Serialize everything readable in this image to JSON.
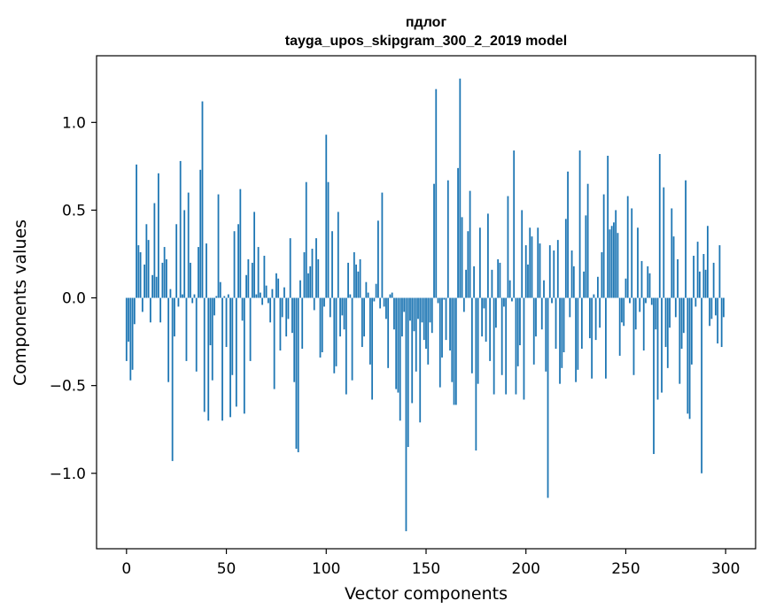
{
  "chart_data": {
    "type": "bar",
    "title": "пдлог",
    "subtitle": "tayga_upos_skipgram_300_2_2019 model",
    "xlabel": "Vector components",
    "ylabel": "Components values",
    "xlim": [
      -15,
      315
    ],
    "ylim": [
      -1.43,
      1.38
    ],
    "xticks": [
      0,
      50,
      100,
      150,
      200,
      250,
      300
    ],
    "yticks": [
      -1.0,
      -0.5,
      0.0,
      0.5,
      1.0
    ],
    "ytick_labels": [
      "−1.0",
      "−0.5",
      "0.0",
      "0.5",
      "1.0"
    ],
    "bar_color": "#1f77b4",
    "grid": false,
    "legend": "none",
    "x_start": 0,
    "values": [
      -0.36,
      -0.25,
      -0.47,
      -0.41,
      -0.15,
      0.76,
      0.3,
      0.26,
      -0.08,
      0.19,
      0.42,
      0.33,
      -0.14,
      0.13,
      0.54,
      0.12,
      0.71,
      -0.14,
      0.2,
      0.29,
      0.22,
      -0.48,
      0.05,
      -0.93,
      -0.22,
      0.42,
      -0.05,
      0.78,
      0.02,
      0.5,
      -0.36,
      0.6,
      0.2,
      -0.03,
      0.02,
      -0.42,
      0.29,
      0.73,
      1.12,
      -0.65,
      0.31,
      -0.7,
      -0.27,
      -0.47,
      -0.1,
      0.01,
      0.59,
      0.09,
      -0.7,
      0.01,
      -0.28,
      0.02,
      -0.68,
      -0.44,
      0.38,
      -0.62,
      0.42,
      0.62,
      -0.13,
      -0.66,
      0.13,
      0.22,
      -0.36,
      0.2,
      0.49,
      0.02,
      0.29,
      0.03,
      -0.04,
      0.24,
      0.07,
      -0.03,
      -0.14,
      0.05,
      -0.52,
      0.14,
      0.11,
      -0.3,
      -0.11,
      0.06,
      -0.22,
      -0.12,
      0.34,
      -0.2,
      -0.48,
      -0.86,
      -0.88,
      0.1,
      -0.29,
      0.26,
      0.66,
      0.14,
      0.18,
      0.28,
      -0.07,
      0.34,
      0.22,
      -0.34,
      -0.31,
      -0.05,
      0.93,
      0.66,
      -0.11,
      0.38,
      -0.43,
      -0.39,
      0.49,
      -0.22,
      -0.1,
      -0.18,
      -0.55,
      0.2,
      0.02,
      -0.47,
      0.26,
      0.19,
      0.15,
      0.22,
      -0.28,
      -0.22,
      0.09,
      0.03,
      -0.38,
      -0.58,
      -0.02,
      0.08,
      0.44,
      -0.06,
      0.6,
      -0.05,
      -0.12,
      -0.4,
      0.02,
      0.03,
      -0.18,
      -0.52,
      -0.54,
      -0.7,
      -0.22,
      -0.08,
      -1.33,
      -0.85,
      -0.13,
      -0.6,
      -0.19,
      -0.42,
      -0.12,
      -0.71,
      -0.14,
      -0.24,
      -0.29,
      -0.38,
      -0.14,
      -0.2,
      0.65,
      1.19,
      -0.03,
      -0.51,
      -0.34,
      -0.01,
      -0.24,
      0.67,
      -0.3,
      -0.48,
      -0.61,
      -0.61,
      0.74,
      1.25,
      0.46,
      -0.08,
      0.16,
      0.38,
      0.61,
      -0.43,
      0.18,
      -0.87,
      -0.49,
      0.4,
      -0.22,
      -0.06,
      -0.25,
      0.48,
      -0.36,
      0.16,
      -0.55,
      -0.17,
      0.22,
      0.2,
      -0.44,
      -0.05,
      -0.55,
      0.58,
      0.1,
      -0.02,
      0.84,
      -0.55,
      -0.39,
      -0.27,
      0.5,
      -0.58,
      0.3,
      0.19,
      0.4,
      0.35,
      -0.38,
      -0.22,
      0.4,
      0.31,
      -0.18,
      0.1,
      -0.42,
      -1.14,
      0.3,
      -0.03,
      0.27,
      -0.29,
      0.33,
      -0.49,
      -0.4,
      -0.31,
      0.45,
      0.72,
      -0.11,
      0.27,
      0.18,
      -0.48,
      -0.41,
      0.84,
      -0.29,
      0.15,
      0.47,
      0.65,
      -0.23,
      -0.46,
      0.02,
      -0.24,
      0.12,
      -0.17,
      0.26,
      0.59,
      -0.46,
      0.81,
      0.39,
      0.41,
      0.43,
      0.5,
      0.37,
      -0.33,
      -0.14,
      -0.16,
      0.11,
      0.58,
      -0.03,
      0.51,
      -0.44,
      -0.18,
      0.4,
      -0.08,
      0.21,
      -0.3,
      -0.03,
      0.18,
      0.14,
      -0.04,
      -0.89,
      -0.18,
      -0.58,
      0.82,
      -0.54,
      0.63,
      -0.28,
      -0.4,
      -0.17,
      0.51,
      0.35,
      -0.11,
      0.22,
      -0.49,
      -0.29,
      -0.2,
      0.67,
      -0.66,
      -0.69,
      -0.38,
      0.24,
      -0.05,
      0.32,
      0.15,
      -1.0,
      0.25,
      0.16,
      0.41,
      -0.16,
      -0.12,
      0.2,
      -0.1,
      -0.26,
      0.3,
      -0.28,
      -0.11
    ]
  }
}
